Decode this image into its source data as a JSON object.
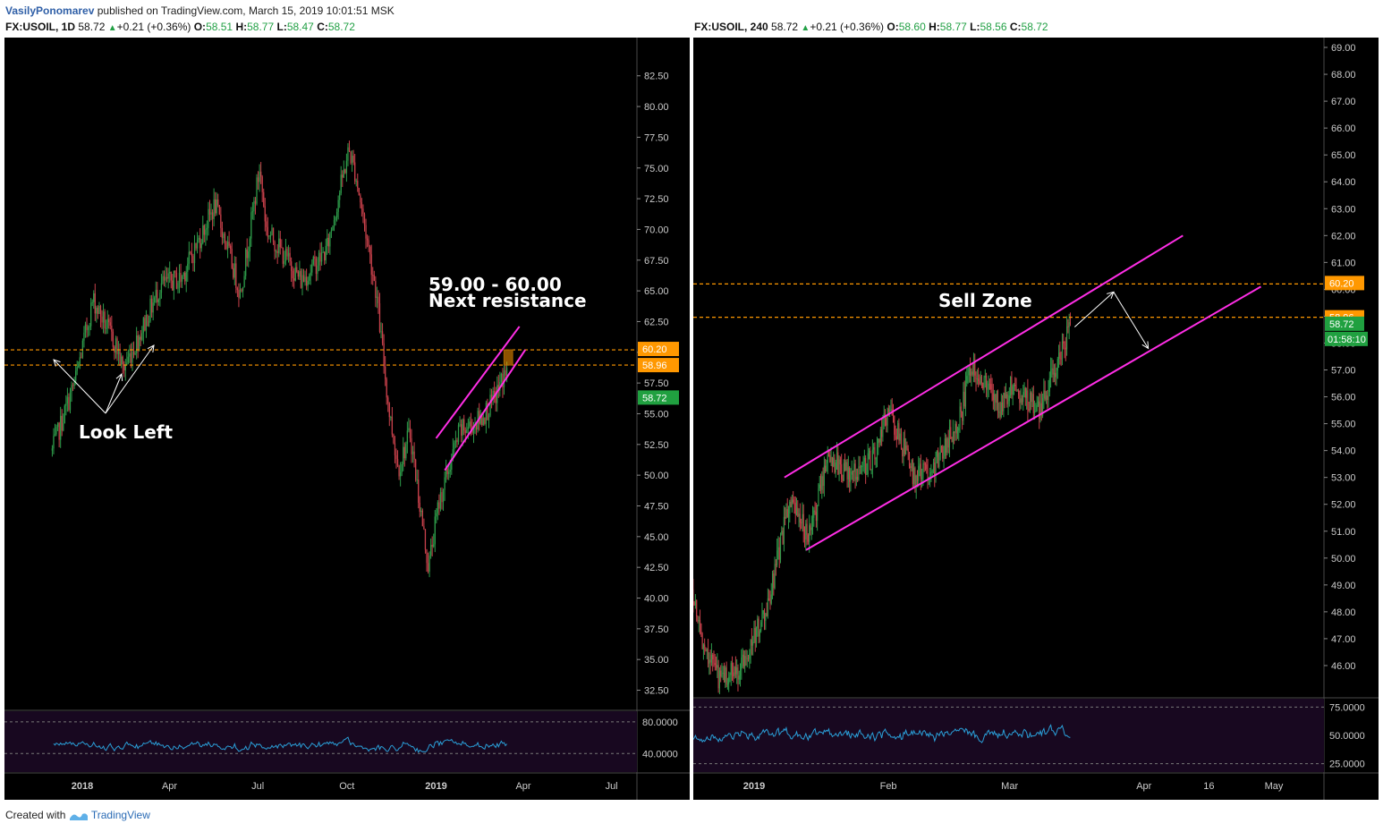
{
  "header": {
    "author": "VasilyPonomarev",
    "publish_text": "published on TradingView.com, March 15, 2019 10:01:51 MSK"
  },
  "left": {
    "symbol": "FX:USOIL, 1D",
    "last": "58.72",
    "change": "+0.21 (+0.36%)",
    "o": "58.51",
    "h": "58.77",
    "l": "58.47",
    "c": "58.72"
  },
  "right": {
    "symbol": "FX:USOIL, 240",
    "last": "58.72",
    "change": "+0.21 (+0.36%)",
    "o": "58.60",
    "h": "58.77",
    "l": "58.56",
    "c": "58.72"
  },
  "labels": {
    "o": "O:",
    "h": "H:",
    "l": "L:",
    "c": "C:"
  },
  "footer": {
    "created_with": "Created with",
    "brand": "TradingView"
  },
  "colors": {
    "panel_bg": "#000000",
    "channel": "#ff2ee6",
    "level": "#ff9800",
    "last_price": "#20a040",
    "rsi": "#2a9fd8",
    "rsi_bg": "#180820",
    "up": "#2e9b4a",
    "down": "#c8414b"
  },
  "chart_data": [
    {
      "type": "candlestick",
      "symbol": "FX:USOIL",
      "interval": "1D",
      "ylim": [
        30.5,
        83.5
      ],
      "yticks": [
        "82.50",
        "80.00",
        "77.50",
        "75.00",
        "72.50",
        "70.00",
        "67.50",
        "65.00",
        "62.50",
        "60.00",
        "57.50",
        "55.00",
        "52.50",
        "50.00",
        "47.50",
        "45.00",
        "42.50",
        "40.00",
        "37.50",
        "35.00",
        "32.50"
      ],
      "xticks": [
        "2018",
        "Apr",
        "Jul",
        "Oct",
        "2019",
        "Apr",
        "Jul"
      ],
      "price_path": {
        "dates": [
          "2017-12-01",
          "2017-12-25",
          "2018-01-12",
          "2018-02-05",
          "2018-02-12",
          "2018-03-01",
          "2018-03-23",
          "2018-04-13",
          "2018-05-18",
          "2018-06-13",
          "2018-07-03",
          "2018-07-10",
          "2018-08-15",
          "2018-09-10",
          "2018-10-03",
          "2018-10-10",
          "2018-10-31",
          "2018-11-13",
          "2018-11-23",
          "2018-12-05",
          "2018-12-24",
          "2019-01-04",
          "2019-01-25",
          "2019-02-15",
          "2019-03-01",
          "2019-03-15"
        ],
        "closes": [
          52.0,
          57.8,
          64.3,
          60.5,
          58.6,
          61.4,
          65.5,
          66.0,
          72.0,
          64.8,
          75.0,
          70.0,
          65.8,
          68.3,
          76.5,
          74.5,
          65.0,
          55.5,
          50.5,
          53.5,
          42.5,
          47.8,
          53.5,
          54.5,
          56.0,
          58.72
        ]
      },
      "levels": [
        {
          "value": 60.2,
          "label": "60.20"
        },
        {
          "value": 58.96,
          "label": "58.96"
        }
      ],
      "last_price": {
        "value": 58.72,
        "label": "58.72"
      },
      "channel": {
        "upper": [
          [
            "2019-01-01",
            53.0
          ],
          [
            "2019-03-28",
            62.1
          ]
        ],
        "lower": [
          [
            "2019-01-10",
            50.4
          ],
          [
            "2019-04-03",
            60.2
          ]
        ]
      },
      "zone": {
        "from": "2019-03-12",
        "to": "2019-03-21",
        "low": 58.96,
        "high": 60.2
      },
      "annotations": [
        "59.00 - 60.00",
        "Next resistance",
        "Look Left"
      ],
      "rsi": {
        "ylim": [
          20,
          90
        ],
        "ticks": [
          "80.0000",
          "40.0000"
        ],
        "lines": [
          80,
          40
        ]
      }
    },
    {
      "type": "candlestick",
      "symbol": "FX:USOIL",
      "interval": "240",
      "ylim": [
        45.0,
        69.3
      ],
      "yticks": [
        "69.00",
        "68.00",
        "67.00",
        "66.00",
        "65.00",
        "64.00",
        "63.00",
        "62.00",
        "61.00",
        "60.00",
        "59.00",
        "58.00",
        "57.00",
        "56.00",
        "55.00",
        "54.00",
        "53.00",
        "52.00",
        "51.00",
        "50.00",
        "49.00",
        "48.00",
        "47.00",
        "46.00"
      ],
      "xticks": [
        "2019",
        "Feb",
        "Mar",
        "Apr",
        "16",
        "May"
      ],
      "price_path": {
        "dates": [
          "2018-12-15",
          "2018-12-20",
          "2018-12-24",
          "2018-12-28",
          "2019-01-04",
          "2019-01-09",
          "2019-01-14",
          "2019-01-18",
          "2019-01-23",
          "2019-01-29",
          "2019-02-01",
          "2019-02-07",
          "2019-02-12",
          "2019-02-18",
          "2019-02-20",
          "2019-02-27",
          "2019-03-01",
          "2019-03-05",
          "2019-03-08",
          "2019-03-11",
          "2019-03-15"
        ],
        "closes": [
          51.0,
          47.0,
          45.5,
          45.8,
          48.0,
          52.0,
          50.8,
          53.9,
          53.0,
          53.8,
          55.5,
          53.0,
          53.5,
          55.5,
          57.3,
          55.6,
          56.4,
          55.9,
          55.5,
          56.8,
          58.72
        ]
      },
      "levels": [
        {
          "value": 60.2,
          "label": "60.20"
        },
        {
          "value": 58.96,
          "label": "58.96"
        }
      ],
      "last_price": {
        "value": 58.72,
        "label": "58.72",
        "countdown": "01:58:10"
      },
      "channel": {
        "upper": [
          [
            "2019-01-08",
            53.0
          ],
          [
            "2019-04-10",
            62.0
          ]
        ],
        "lower": [
          [
            "2019-01-13",
            50.3
          ],
          [
            "2019-04-28",
            60.1
          ]
        ]
      },
      "projection": [
        [
          "2019-03-16",
          58.6
        ],
        [
          "2019-03-25",
          59.9
        ],
        [
          "2019-04-02",
          57.8
        ]
      ],
      "annotations": [
        "Sell Zone"
      ],
      "rsi": {
        "ylim": [
          20,
          80
        ],
        "ticks": [
          "75.0000",
          "50.0000",
          "25.0000"
        ],
        "lines": [
          75,
          25
        ]
      }
    }
  ]
}
